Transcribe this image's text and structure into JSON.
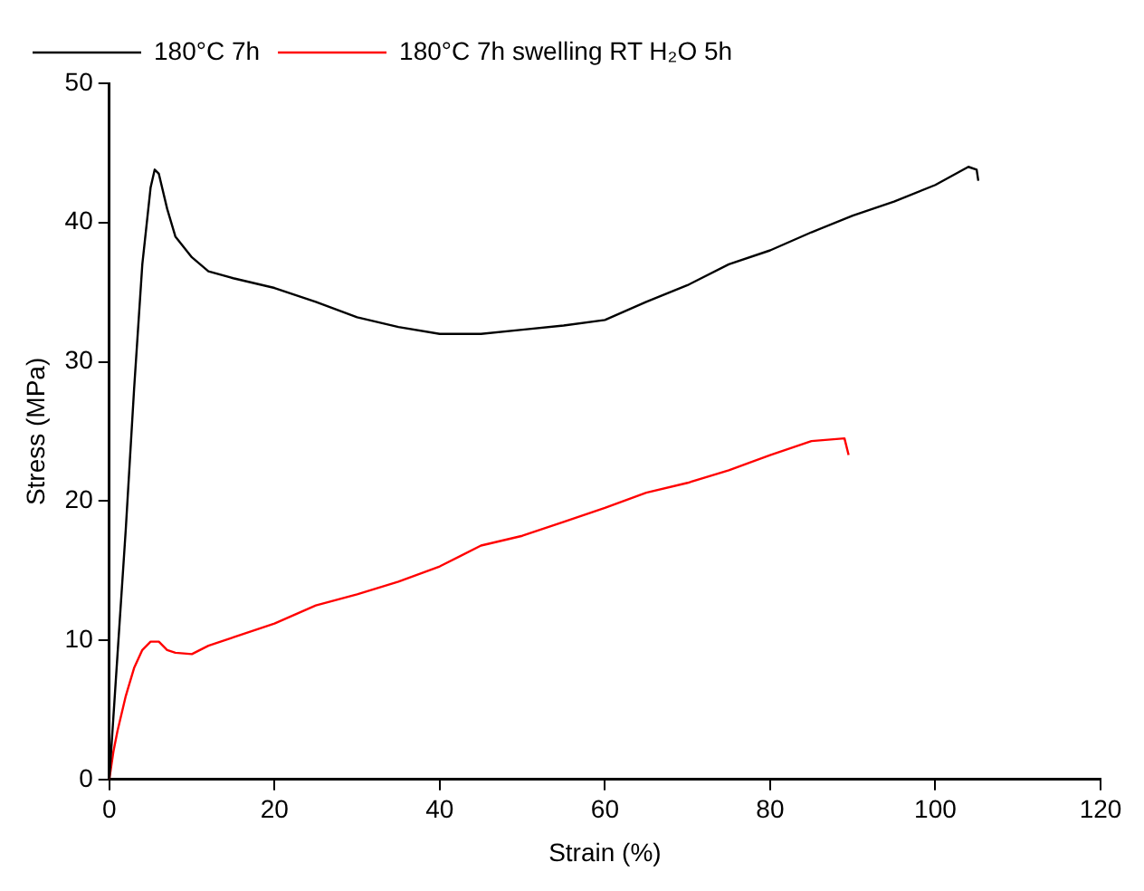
{
  "chart_data": {
    "type": "line",
    "xlabel": "Strain (%)",
    "ylabel": "Stress (MPa)",
    "xlim": [
      0,
      120
    ],
    "xticks": [
      0,
      20,
      40,
      60,
      80,
      100,
      120
    ],
    "ylim": [
      0,
      50
    ],
    "yticks": [
      0,
      10,
      20,
      30,
      40,
      50
    ],
    "grid": false,
    "legend": "top",
    "marker": "none",
    "line_style": "solid",
    "series": [
      {
        "name": "180°C 7h",
        "color": "#000000",
        "x": [
          0,
          1,
          2,
          3,
          4,
          5,
          5.5,
          6,
          7,
          8,
          10,
          12,
          15,
          20,
          25,
          30,
          35,
          40,
          45,
          50,
          55,
          60,
          65,
          70,
          75,
          80,
          85,
          90,
          95,
          100,
          104,
          105,
          105.2
        ],
        "values": [
          0,
          9,
          18,
          28,
          37,
          42.5,
          43.8,
          43.5,
          41,
          39,
          37.5,
          36.5,
          36,
          35.3,
          34.3,
          33.2,
          32.5,
          32,
          32,
          32.3,
          32.6,
          33,
          34.3,
          35.5,
          37,
          38,
          39.3,
          40.5,
          41.5,
          42.7,
          44,
          43.8,
          43
        ]
      },
      {
        "name": "180°C 7h swelling RT H₂O 5h",
        "color": "#ff0000",
        "x": [
          0,
          0.5,
          1,
          2,
          3,
          4,
          5,
          6,
          7,
          8,
          10,
          12,
          15,
          20,
          25,
          30,
          35,
          40,
          45,
          50,
          55,
          60,
          65,
          70,
          75,
          80,
          85,
          89,
          89.5
        ],
        "values": [
          0,
          2,
          3.5,
          6,
          8,
          9.3,
          9.9,
          9.9,
          9.3,
          9.1,
          9,
          9.6,
          10.2,
          11.2,
          12.5,
          13.3,
          14.2,
          15.3,
          16.8,
          17.5,
          18.5,
          19.5,
          20.6,
          21.3,
          22.2,
          23.3,
          24.3,
          24.5,
          23.3
        ]
      }
    ]
  }
}
